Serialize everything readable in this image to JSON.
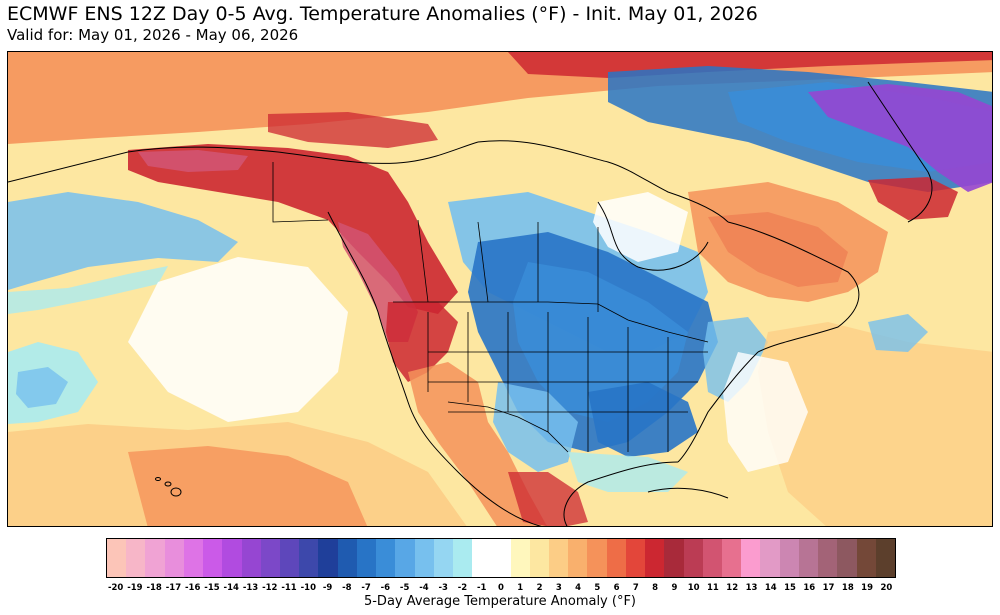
{
  "header": {
    "title": "ECMWF ENS 12Z Day 0-5 Avg. Temperature Anomalies (°F) - Init. May 01, 2026",
    "valid": "Valid for: May 01, 2026 - May 06, 2026"
  },
  "legend": {
    "label": "5-Day Average Temperature Anomaly (°F)",
    "ticks": [
      "-20",
      "-19",
      "-18",
      "-17",
      "-16",
      "-15",
      "-14",
      "-13",
      "-12",
      "-11",
      "-10",
      "-9",
      "-8",
      "-7",
      "-6",
      "-5",
      "-4",
      "-3",
      "-2",
      "-1",
      "0",
      "1",
      "2",
      "3",
      "4",
      "5",
      "6",
      "7",
      "8",
      "9",
      "10",
      "11",
      "12",
      "13",
      "14",
      "15",
      "16",
      "17",
      "18",
      "19",
      "20"
    ],
    "colors": [
      "#fcc5b8",
      "#f7b6c8",
      "#f0a3d4",
      "#e88edc",
      "#de73e6",
      "#cb5ae8",
      "#b14be0",
      "#9646d2",
      "#7c48c8",
      "#5e47bb",
      "#3d48ab",
      "#1f3f9a",
      "#1f5bb0",
      "#2874c6",
      "#3a8dd8",
      "#58a7e6",
      "#77c0ee",
      "#95d6f2",
      "#aaebf0",
      "#ffffff",
      "#ffffff",
      "#fff7bd",
      "#fde7a1",
      "#fccd86",
      "#f9b06d",
      "#f5925a",
      "#ee6d47",
      "#e3463a",
      "#cc2731",
      "#a82a3a",
      "#bb3c54",
      "#d25471",
      "#e7708f",
      "#fb9ccf",
      "#e29ac6",
      "#cc86b2",
      "#b77495",
      "#a36377",
      "#8d5860",
      "#744838",
      "#5c3f2c"
    ],
    "region_colors": {
      "strong_warm": "#cc2731",
      "extreme_warm": "#d25471",
      "moderate_warm": "#f5925a",
      "mild_warm": "#fccd86",
      "slight_warm": "#fde7a1",
      "neutral": "#ffffff",
      "slight_cool": "#aaebf0",
      "mild_cool": "#77c0ee",
      "moderate_cool": "#3a8dd8",
      "strong_cool": "#2874c6",
      "extreme_cool": "#9646d2"
    }
  }
}
